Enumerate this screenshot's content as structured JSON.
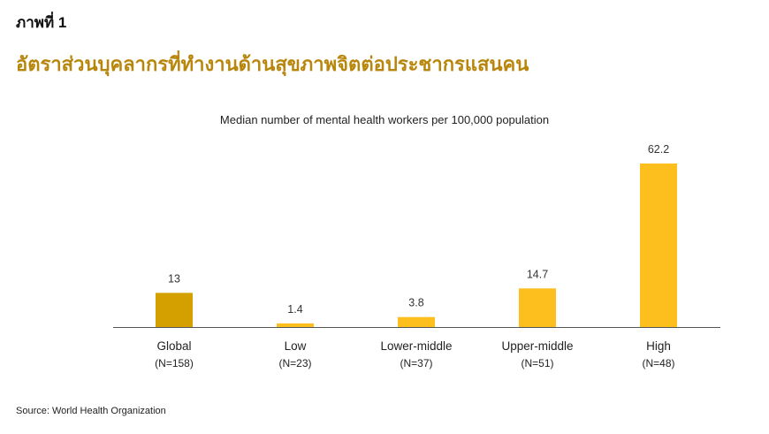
{
  "figure_label": "ภาพที่ 1",
  "figure_title": "อัตราส่วนบุคลากรที่ทำงานด้านสุขภาพจิตต่อประชากรแสนคน",
  "source": "Source: World Health Organization",
  "colors": {
    "title": "#b8860b",
    "global_bar": "#d4a000",
    "bar": "#fcbf1e",
    "axis": "#555555"
  },
  "chart_data": {
    "type": "bar",
    "title": "Median number of mental health workers per 100,000 population",
    "categories": [
      "Global",
      "Low",
      "Lower-middle",
      "Upper-middle",
      "High"
    ],
    "sublabels": [
      "(N=158)",
      "(N=23)",
      "(N=37)",
      "(N=51)",
      "(N=48)"
    ],
    "values": [
      13,
      1.4,
      3.8,
      14.7,
      62.2
    ],
    "value_labels": [
      "13",
      "1.4",
      "3.8",
      "14.7",
      "62.2"
    ],
    "ylim": [
      0,
      62.2
    ],
    "grid": false,
    "xlabel": "",
    "ylabel": ""
  }
}
